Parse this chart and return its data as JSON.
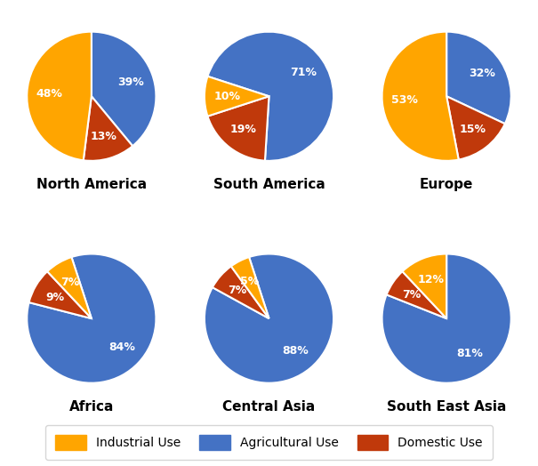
{
  "regions": [
    "North America",
    "South America",
    "Europe",
    "Africa",
    "Central Asia",
    "South East Asia"
  ],
  "data": [
    {
      "agricultural": 39,
      "domestic": 13,
      "industrial": 48
    },
    {
      "agricultural": 71,
      "domestic": 19,
      "industrial": 10
    },
    {
      "agricultural": 32,
      "domestic": 15,
      "industrial": 53
    },
    {
      "agricultural": 84,
      "domestic": 9,
      "industrial": 7
    },
    {
      "agricultural": 88,
      "domestic": 7,
      "industrial": 5
    },
    {
      "agricultural": 81,
      "domestic": 7,
      "industrial": 12
    }
  ],
  "colors": {
    "agricultural": "#4472C4",
    "domestic": "#C0390B",
    "industrial": "#FFA500"
  },
  "start_angles": [
    90,
    162,
    90,
    108,
    108,
    90
  ],
  "background": "#FFFFFF",
  "label_fontsize": 9,
  "title_fontsize": 11,
  "legend_labels": [
    "Industrial Use",
    "Agricultural Use",
    "Domestic Use"
  ]
}
